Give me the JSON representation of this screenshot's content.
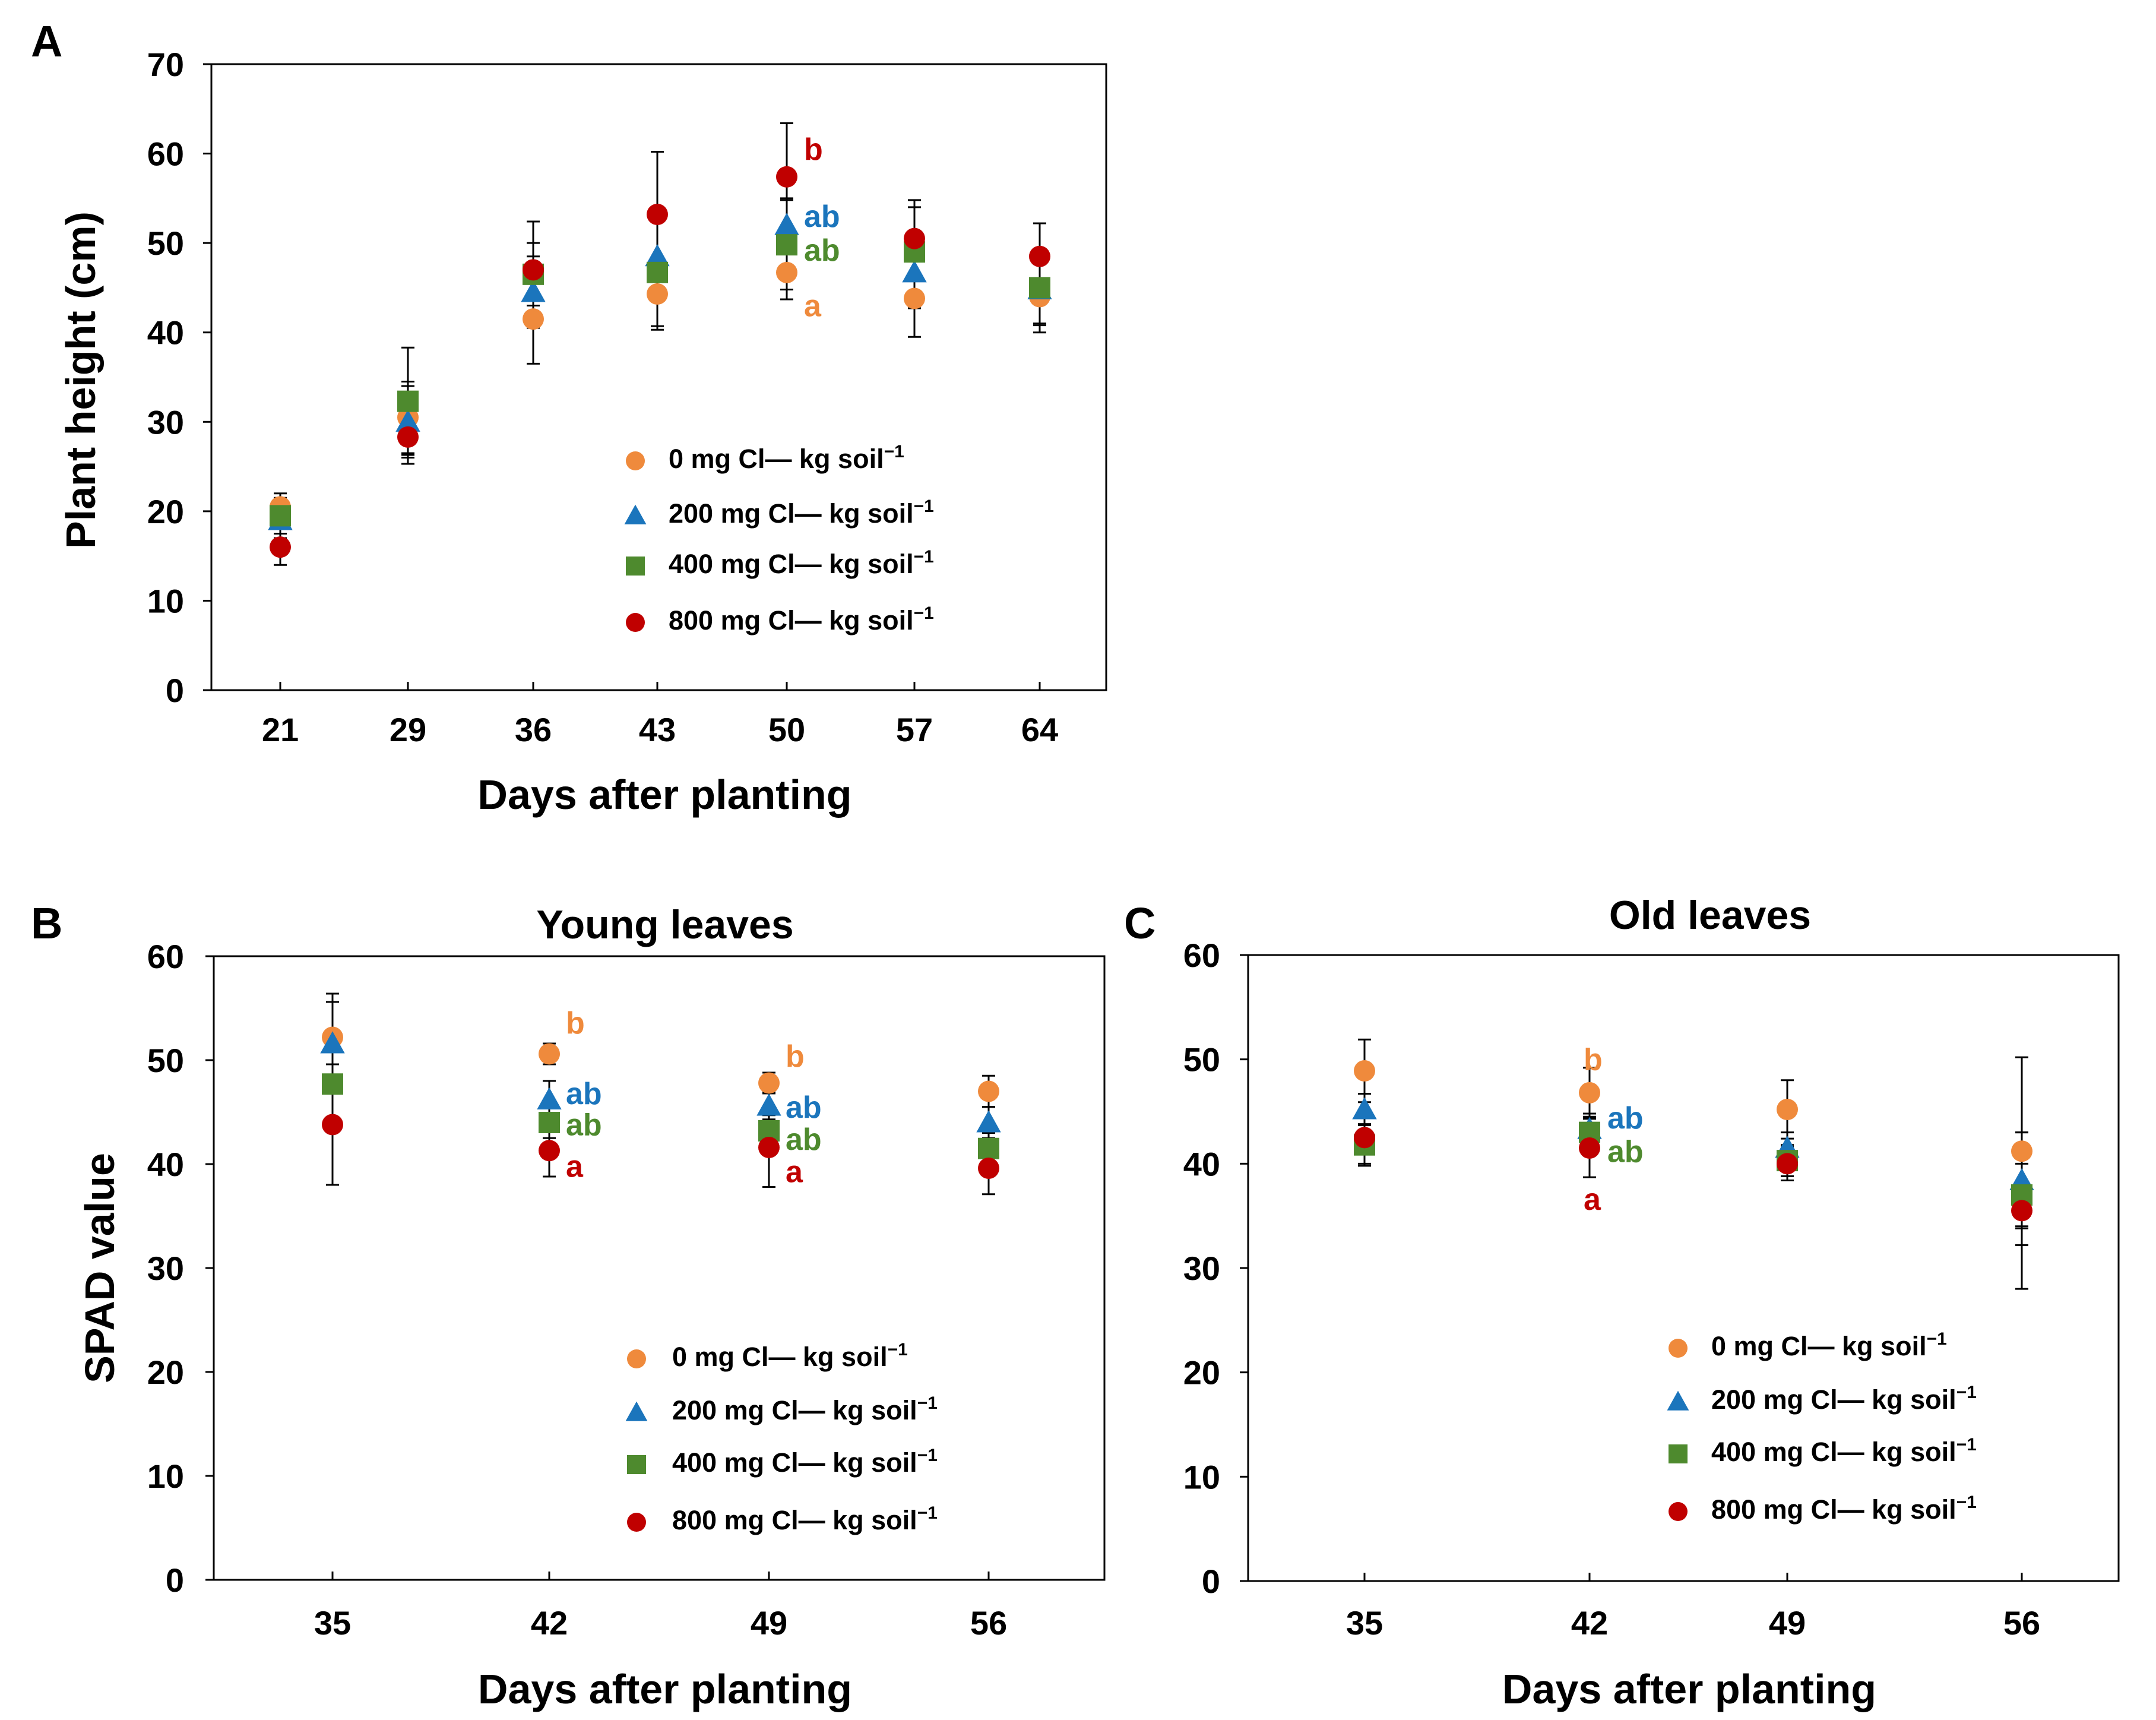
{
  "colors": {
    "0": "#EF8A3C",
    "200": "#1B75BC",
    "400": "#4E8A2E",
    "800": "#C00000"
  },
  "legend": [
    {
      "key": "0",
      "label": "0 mg Cl— kg soil",
      "sup": "−1",
      "marker": "circle"
    },
    {
      "key": "200",
      "label": "200 mg Cl— kg soil",
      "sup": "−1",
      "marker": "triangle"
    },
    {
      "key": "400",
      "label": "400 mg Cl— kg soil",
      "sup": "−1",
      "marker": "square"
    },
    {
      "key": "800",
      "label": "800 mg Cl— kg soil",
      "sup": "−1",
      "marker": "circle"
    }
  ],
  "chart_data": [
    {
      "id": "A",
      "panel_label": "A",
      "type": "scatter",
      "title": "",
      "xlabel": "Days after planting",
      "ylabel": "Plant height (cm)",
      "ylim": [
        0,
        70
      ],
      "yticks": [
        "0",
        "10",
        "20",
        "30",
        "40",
        "50",
        "60",
        "70"
      ],
      "categories": [
        "21",
        "29",
        "36",
        "43",
        "50",
        "57",
        "64"
      ],
      "series": [
        {
          "key": "0",
          "values": [
            20.5,
            30.5,
            41.5,
            44.3,
            46.7,
            43.8,
            44.0
          ],
          "err": [
            1.5,
            4.0,
            5.0,
            4.0,
            3.0,
            4.3,
            4.0
          ]
        },
        {
          "key": "200",
          "values": [
            19.0,
            30.0,
            44.5,
            48.5,
            52.0,
            46.7,
            44.8
          ],
          "err": [
            2.0,
            4.0,
            4.0,
            4.0,
            3.0,
            4.0,
            4.0
          ]
        },
        {
          "key": "400",
          "values": [
            19.5,
            32.3,
            46.5,
            46.7,
            49.8,
            49.0,
            45.0
          ],
          "err": [
            2.0,
            6.0,
            3.5,
            6.0,
            5.0,
            5.0,
            4.0
          ]
        },
        {
          "key": "800",
          "values": [
            16.0,
            28.3,
            47.0,
            53.2,
            57.4,
            50.5,
            48.5
          ],
          "err": [
            2.0,
            3.0,
            5.4,
            7.0,
            6.0,
            4.3,
            3.7
          ]
        }
      ],
      "annotations": [
        {
          "text": "b",
          "series": "800",
          "value": 60.5
        },
        {
          "text": "ab",
          "series": "200",
          "value": 53.0
        },
        {
          "text": "ab",
          "series": "400",
          "value": 49.2
        },
        {
          "text": "a",
          "series": "0",
          "value": 43.0
        }
      ],
      "annotation_category": "50"
    },
    {
      "id": "B",
      "panel_label": "B",
      "type": "scatter",
      "title": "Young leaves",
      "xlabel": "Days after planting",
      "ylabel": "SPAD value",
      "ylim": [
        0,
        60
      ],
      "yticks": [
        "0",
        "10",
        "20",
        "30",
        "40",
        "50",
        "60"
      ],
      "categories": [
        "35",
        "42",
        "49",
        "56"
      ],
      "series": [
        {
          "key": "0",
          "values": [
            52.2,
            50.6,
            47.8,
            47.0
          ],
          "err": [
            4.2,
            1.0,
            1.0,
            1.5
          ]
        },
        {
          "key": "200",
          "values": [
            51.6,
            46.2,
            45.6,
            44.0
          ],
          "err": [
            4.0,
            1.8,
            1.3,
            1.5
          ]
        },
        {
          "key": "400",
          "values": [
            47.7,
            44.0,
            43.2,
            41.5
          ],
          "err": [
            3.5,
            1.5,
            1.5,
            1.5
          ]
        },
        {
          "key": "800",
          "values": [
            43.8,
            41.3,
            41.6,
            39.6
          ],
          "err": [
            5.8,
            2.5,
            3.8,
            2.5
          ]
        }
      ],
      "annotations": [
        {
          "category": "42",
          "text": "b",
          "series": "0",
          "value": 53.6
        },
        {
          "category": "42",
          "text": "ab",
          "series": "200",
          "value": 46.8
        },
        {
          "category": "42",
          "text": "ab",
          "series": "400",
          "value": 43.8
        },
        {
          "category": "42",
          "text": "a",
          "series": "800",
          "value": 39.8
        },
        {
          "category": "49",
          "text": "b",
          "series": "0",
          "value": 50.4
        },
        {
          "category": "49",
          "text": "ab",
          "series": "200",
          "value": 45.5
        },
        {
          "category": "49",
          "text": "ab",
          "series": "400",
          "value": 42.4
        },
        {
          "category": "49",
          "text": "a",
          "series": "800",
          "value": 39.3
        }
      ],
      "legend_position": "bottom-right"
    },
    {
      "id": "C",
      "panel_label": "C",
      "type": "scatter",
      "title": "Old leaves",
      "xlabel": "Days after planting",
      "ylabel": "",
      "ylim": [
        0,
        60
      ],
      "yticks": [
        "0",
        "10",
        "20",
        "30",
        "40",
        "50",
        "60"
      ],
      "categories": [
        "35",
        "42",
        "49",
        "56"
      ],
      "series": [
        {
          "key": "0",
          "values": [
            48.9,
            46.8,
            45.2,
            41.2
          ],
          "err": [
            3.0,
            2.4,
            2.8,
            9.0
          ]
        },
        {
          "key": "200",
          "values": [
            45.2,
            43.3,
            41.5,
            38.4
          ],
          "err": [
            1.5,
            1.5,
            1.5,
            4.6
          ]
        },
        {
          "key": "400",
          "values": [
            41.8,
            43.0,
            40.3,
            37.0
          ],
          "err": [
            2.0,
            1.5,
            1.5,
            3.0
          ]
        },
        {
          "key": "800",
          "values": [
            42.5,
            41.5,
            40.0,
            35.5
          ],
          "err": [
            2.5,
            2.8,
            1.6,
            7.5
          ]
        }
      ],
      "annotations": [
        {
          "category": "42",
          "text": "b",
          "series": "0",
          "value": 50.0
        },
        {
          "category": "42",
          "text": "ab",
          "series": "200",
          "value": 44.4
        },
        {
          "category": "42",
          "text": "ab",
          "series": "400",
          "value": 41.2
        },
        {
          "category": "42",
          "text": "a",
          "series": "800",
          "value": 36.6
        }
      ],
      "legend_position": "bottom-right"
    }
  ]
}
